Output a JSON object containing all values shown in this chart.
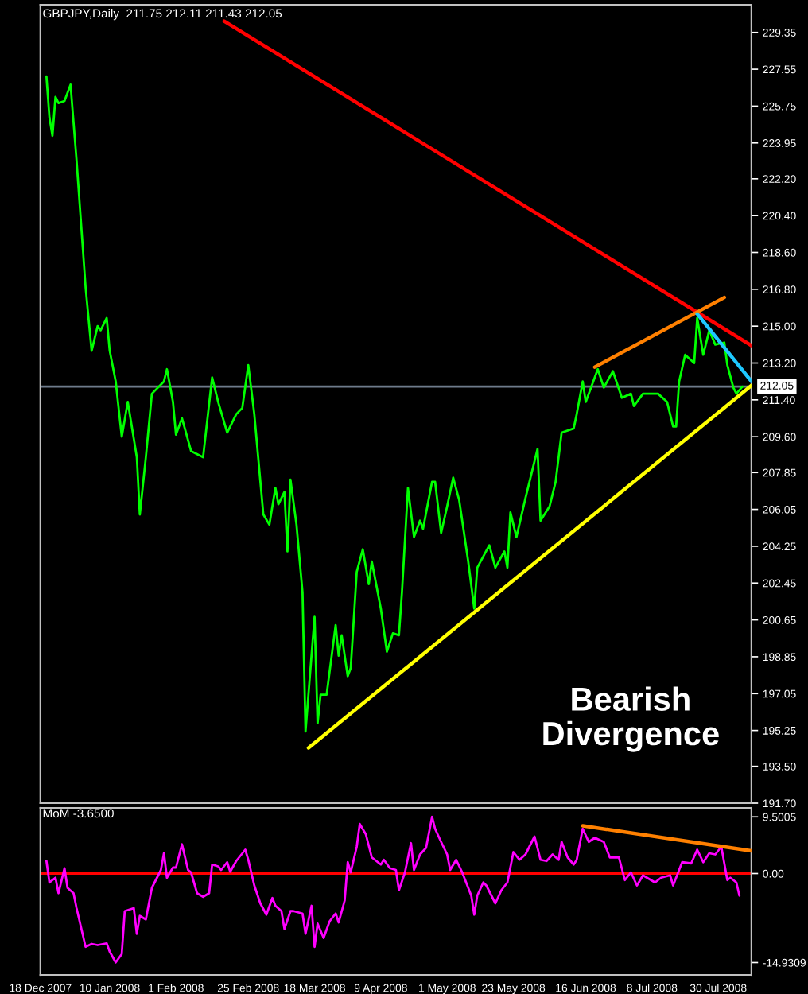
{
  "chart_data": [
    {
      "type": "line",
      "title": "GBPJPY,Daily  211.75 212.11 211.43 212.05",
      "annotations": [
        "Bearish\nDivergence"
      ],
      "xlim": [
        "2007-12-18",
        "2008-08-10"
      ],
      "ylim": [
        191.7,
        230.7
      ],
      "tick_labels": "y",
      "yticks": [
        229.35,
        227.55,
        225.75,
        223.95,
        {
          "value": 222.2,
          "label": "222.20"
        },
        {
          "value": 220.4,
          "label": "220.40"
        },
        {
          "value": 218.6,
          "label": "218.60"
        },
        {
          "value": 216.8,
          "label": "216.80"
        },
        {
          "value": 215,
          "label": "215.00"
        },
        {
          "value": 213.2,
          "label": "213.20"
        },
        {
          "value": 211.4,
          "label": "211.40"
        },
        {
          "value": 209.6,
          "label": "209.60"
        },
        207.85,
        206.05,
        204.25,
        202.45,
        200.65,
        198.85,
        197.05,
        195.25,
        {
          "value": 193.5,
          "label": "193.50"
        },
        {
          "value": 191.7,
          "label": "191.70"
        }
      ],
      "ref_lines": [
        {
          "axis": "y",
          "value": 212.05,
          "label": "212.05",
          "color": "#6e7b8b"
        }
      ],
      "series": [
        {
          "type": "line",
          "color": "#00ff00",
          "x": [
            "2007-12-20",
            "2007-12-21",
            "2007-12-22",
            "2007-12-23",
            "2007-12-24",
            "2007-12-26",
            "2007-12-28",
            "2007-12-30",
            "2008-01-02",
            "2008-01-04",
            "2008-01-06",
            "2008-01-07",
            "2008-01-09",
            "2008-01-10",
            "2008-01-12",
            "2008-01-14",
            "2008-01-16",
            "2008-01-19",
            "2008-01-20",
            "2008-01-22",
            "2008-01-24",
            "2008-01-28",
            "2008-01-29",
            "2008-01-31",
            "2008-02-01",
            "2008-02-03",
            "2008-02-06",
            "2008-02-10",
            "2008-02-13",
            "2008-02-15",
            "2008-02-18",
            "2008-02-21",
            "2008-02-23",
            "2008-02-25",
            "2008-02-27",
            "2008-03-01",
            "2008-03-03",
            "2008-03-05",
            "2008-03-06",
            "2008-03-08",
            "2008-03-09",
            "2008-03-10",
            "2008-03-12",
            "2008-03-14",
            "2008-03-15",
            "2008-03-18",
            "2008-03-19",
            "2008-03-20",
            "2008-03-22",
            "2008-03-25",
            "2008-03-26",
            "2008-03-27",
            "2008-03-29",
            "2008-03-30",
            "2008-04-01",
            "2008-04-03",
            "2008-04-05",
            "2008-04-06",
            "2008-04-09",
            "2008-04-11",
            "2008-04-13",
            "2008-04-15",
            "2008-04-16",
            "2008-04-18",
            "2008-04-20",
            "2008-04-22",
            "2008-04-23",
            "2008-04-26",
            "2008-04-27",
            "2008-04-29",
            "2008-05-01",
            "2008-05-03",
            "2008-05-05",
            "2008-05-08",
            "2008-05-10",
            "2008-05-11",
            "2008-05-15",
            "2008-05-17",
            "2008-05-20",
            "2008-05-21",
            "2008-05-22",
            "2008-05-24",
            "2008-05-27",
            "2008-05-31",
            "2008-06-01",
            "2008-06-04",
            "2008-06-06",
            "2008-06-08",
            "2008-06-12",
            "2008-06-13",
            "2008-06-15",
            "2008-06-16",
            "2008-06-20",
            "2008-06-22",
            "2008-06-25",
            "2008-06-28",
            "2008-07-01",
            "2008-07-02",
            "2008-07-05",
            "2008-07-10",
            "2008-07-13",
            "2008-07-15",
            "2008-07-16",
            "2008-07-17",
            "2008-07-19",
            "2008-07-22",
            "2008-07-23",
            "2008-07-25",
            "2008-07-27",
            "2008-07-29",
            "2008-08-01",
            "2008-08-02",
            "2008-08-04",
            "2008-08-05",
            "2008-08-07"
          ],
          "values": [
            227.2,
            225.2,
            224.3,
            226.2,
            225.9,
            226.0,
            226.8,
            223.1,
            216.9,
            213.8,
            215.0,
            214.8,
            215.4,
            213.8,
            212.3,
            209.6,
            211.3,
            208.6,
            205.8,
            208.6,
            211.7,
            212.3,
            212.9,
            211.3,
            209.7,
            210.5,
            208.9,
            208.6,
            212.5,
            211.3,
            209.8,
            210.7,
            211.0,
            213.1,
            210.7,
            205.8,
            205.3,
            207.1,
            206.3,
            206.9,
            204.0,
            207.5,
            205.3,
            202.0,
            195.2,
            200.8,
            195.6,
            197.0,
            197.0,
            200.4,
            198.9,
            199.9,
            197.9,
            198.3,
            203.0,
            204.1,
            202.4,
            203.5,
            201.2,
            199.1,
            200.0,
            199.9,
            202.0,
            207.1,
            204.7,
            205.5,
            205.1,
            207.4,
            207.4,
            204.9,
            206.2,
            207.6,
            206.5,
            203.5,
            201.2,
            203.2,
            204.3,
            203.2,
            204.0,
            203.2,
            205.9,
            204.7,
            206.6,
            209.0,
            205.5,
            206.2,
            207.4,
            209.8,
            210.0,
            210.7,
            212.3,
            211.3,
            212.9,
            212.0,
            212.8,
            211.5,
            211.7,
            211.1,
            211.7,
            211.7,
            211.3,
            210.1,
            210.1,
            212.3,
            213.6,
            213.2,
            215.4,
            213.6,
            214.8,
            214.1,
            214.2,
            213.1,
            212.0,
            211.7,
            212.05
          ]
        },
        {
          "type": "line",
          "color": "#ff0000",
          "x": [
            "2008-02-17",
            "2008-08-10"
          ],
          "values": [
            229.9,
            214.05
          ]
        },
        {
          "type": "line",
          "color": "#ffff00",
          "x": [
            "2008-03-16",
            "2008-08-10"
          ],
          "values": [
            194.4,
            212.1
          ]
        },
        {
          "type": "line",
          "color": "#ff8000",
          "x": [
            "2008-06-19",
            "2008-08-01"
          ],
          "values": [
            213.0,
            216.4
          ]
        },
        {
          "type": "line",
          "color": "#1ec8ff",
          "x": [
            "2008-07-23",
            "2008-08-10"
          ],
          "values": [
            215.6,
            212.3
          ]
        }
      ]
    },
    {
      "type": "line",
      "title": "MoM -3.6500",
      "xlim": [
        "2007-12-18",
        "2008-08-10"
      ],
      "ylim": [
        -17,
        11
      ],
      "xticks": [
        {
          "value": "2007-12-18",
          "label": "18 Dec 2007"
        },
        {
          "value": "2008-01-10",
          "label": "10 Jan 2008"
        },
        {
          "value": "2008-02-01",
          "label": "1 Feb 2008"
        },
        {
          "value": "2008-02-25",
          "label": "25 Feb 2008"
        },
        {
          "value": "2008-03-18",
          "label": "18 Mar 2008"
        },
        {
          "value": "2008-04-09",
          "label": "9 Apr 2008"
        },
        {
          "value": "2008-05-01",
          "label": "1 May 2008"
        },
        {
          "value": "2008-05-23",
          "label": "23 May 2008"
        },
        {
          "value": "2008-06-16",
          "label": "16 Jun 2008"
        },
        {
          "value": "2008-07-08",
          "label": "8 Jul 2008"
        },
        {
          "value": "2008-07-30",
          "label": "30 Jul 2008"
        }
      ],
      "yticks": [
        9.5005,
        {
          "value": 0,
          "label": "0.00"
        },
        -14.9309
      ],
      "ref_lines": [
        {
          "axis": "y",
          "value": 0,
          "color": "#ff0000"
        }
      ],
      "series": [
        {
          "type": "line",
          "color": "#ff00ff",
          "x": [
            "2007-12-20",
            "2007-12-21",
            "2007-12-23",
            "2007-12-24",
            "2007-12-26",
            "2007-12-27",
            "2007-12-29",
            "2007-12-30",
            "2008-01-02",
            "2008-01-04",
            "2008-01-06",
            "2008-01-09",
            "2008-01-10",
            "2008-01-12",
            "2008-01-14",
            "2008-01-15",
            "2008-01-18",
            "2008-01-19",
            "2008-01-20",
            "2008-01-22",
            "2008-01-24",
            "2008-01-27",
            "2008-01-28",
            "2008-01-29",
            "2008-01-31",
            "2008-02-01",
            "2008-02-03",
            "2008-02-05",
            "2008-02-06",
            "2008-02-08",
            "2008-02-10",
            "2008-02-12",
            "2008-02-13",
            "2008-02-15",
            "2008-02-16",
            "2008-02-18",
            "2008-02-19",
            "2008-02-21",
            "2008-02-24",
            "2008-02-25",
            "2008-02-27",
            "2008-02-29",
            "2008-03-02",
            "2008-03-04",
            "2008-03-05",
            "2008-03-07",
            "2008-03-08",
            "2008-03-10",
            "2008-03-11",
            "2008-03-14",
            "2008-03-15",
            "2008-03-17",
            "2008-03-18",
            "2008-03-19",
            "2008-03-21",
            "2008-03-23",
            "2008-03-25",
            "2008-03-26",
            "2008-03-28",
            "2008-03-29",
            "2008-03-30",
            "2008-04-01",
            "2008-04-02",
            "2008-04-04",
            "2008-04-06",
            "2008-04-09",
            "2008-04-10",
            "2008-04-12",
            "2008-04-14",
            "2008-04-15",
            "2008-04-17",
            "2008-04-19",
            "2008-04-20",
            "2008-04-22",
            "2008-04-24",
            "2008-04-26",
            "2008-04-27",
            "2008-04-29",
            "2008-05-01",
            "2008-05-02",
            "2008-05-04",
            "2008-05-06",
            "2008-05-09",
            "2008-05-10",
            "2008-05-11",
            "2008-05-13",
            "2008-05-14",
            "2008-05-17",
            "2008-05-19",
            "2008-05-21",
            "2008-05-23",
            "2008-05-25",
            "2008-05-27",
            "2008-05-30",
            "2008-06-01",
            "2008-06-03",
            "2008-06-05",
            "2008-06-07",
            "2008-06-08",
            "2008-06-10",
            "2008-06-12",
            "2008-06-13",
            "2008-06-15",
            "2008-06-17",
            "2008-06-19",
            "2008-06-22",
            "2008-06-24",
            "2008-06-27",
            "2008-06-29",
            "2008-07-01",
            "2008-07-03",
            "2008-07-05",
            "2008-07-09",
            "2008-07-11",
            "2008-07-14",
            "2008-07-15",
            "2008-07-18",
            "2008-07-21",
            "2008-07-23",
            "2008-07-25",
            "2008-07-27",
            "2008-07-29",
            "2008-07-31",
            "2008-08-02",
            "2008-08-03",
            "2008-08-05",
            "2008-08-06"
          ],
          "values": [
            2.1,
            -1.5,
            -0.7,
            -3.3,
            0.9,
            -2.4,
            -3.3,
            -5.8,
            -12.3,
            -11.8,
            -12.0,
            -11.7,
            -13.1,
            -14.9,
            -13.5,
            -6.3,
            -5.8,
            -10.1,
            -7.1,
            -7.7,
            -2.4,
            0.6,
            3.4,
            -0.7,
            1.0,
            1.0,
            4.9,
            0.6,
            0.2,
            -3.3,
            -3.9,
            -3.3,
            1.5,
            1.2,
            0.6,
            1.9,
            0.3,
            2.1,
            4.0,
            2.3,
            -2.0,
            -5.0,
            -6.9,
            -4.1,
            -5.4,
            -6.3,
            -9.3,
            -6.3,
            -6.3,
            -6.7,
            -10.1,
            -5.4,
            -12.3,
            -8.4,
            -10.8,
            -8.0,
            -6.7,
            -8.2,
            -4.5,
            1.9,
            0.2,
            4.5,
            8.3,
            6.6,
            2.7,
            1.5,
            2.3,
            0.9,
            0.6,
            -2.8,
            0.2,
            5.1,
            0.6,
            3.2,
            4.3,
            9.5,
            7.5,
            5.3,
            3.2,
            0.6,
            2.3,
            0.2,
            -3.7,
            -6.9,
            -3.7,
            -1.5,
            -2.0,
            -5.0,
            -2.8,
            -1.5,
            3.6,
            2.3,
            3.2,
            6.2,
            2.3,
            2.1,
            3.2,
            2.3,
            5.3,
            2.7,
            1.5,
            2.3,
            7.5,
            5.3,
            6.0,
            5.3,
            2.7,
            2.7,
            -1.1,
            0.2,
            -2.0,
            -0.3,
            -1.5,
            -0.7,
            -0.3,
            -2.0,
            1.9,
            1.7,
            4.0,
            1.9,
            3.4,
            3.2,
            4.5,
            -1.1,
            -0.7,
            -1.5,
            -3.7
          ]
        },
        {
          "type": "line",
          "color": "#ff8000",
          "x": [
            "2008-06-15",
            "2008-08-10"
          ],
          "values": [
            8.0,
            3.8
          ]
        }
      ]
    }
  ]
}
